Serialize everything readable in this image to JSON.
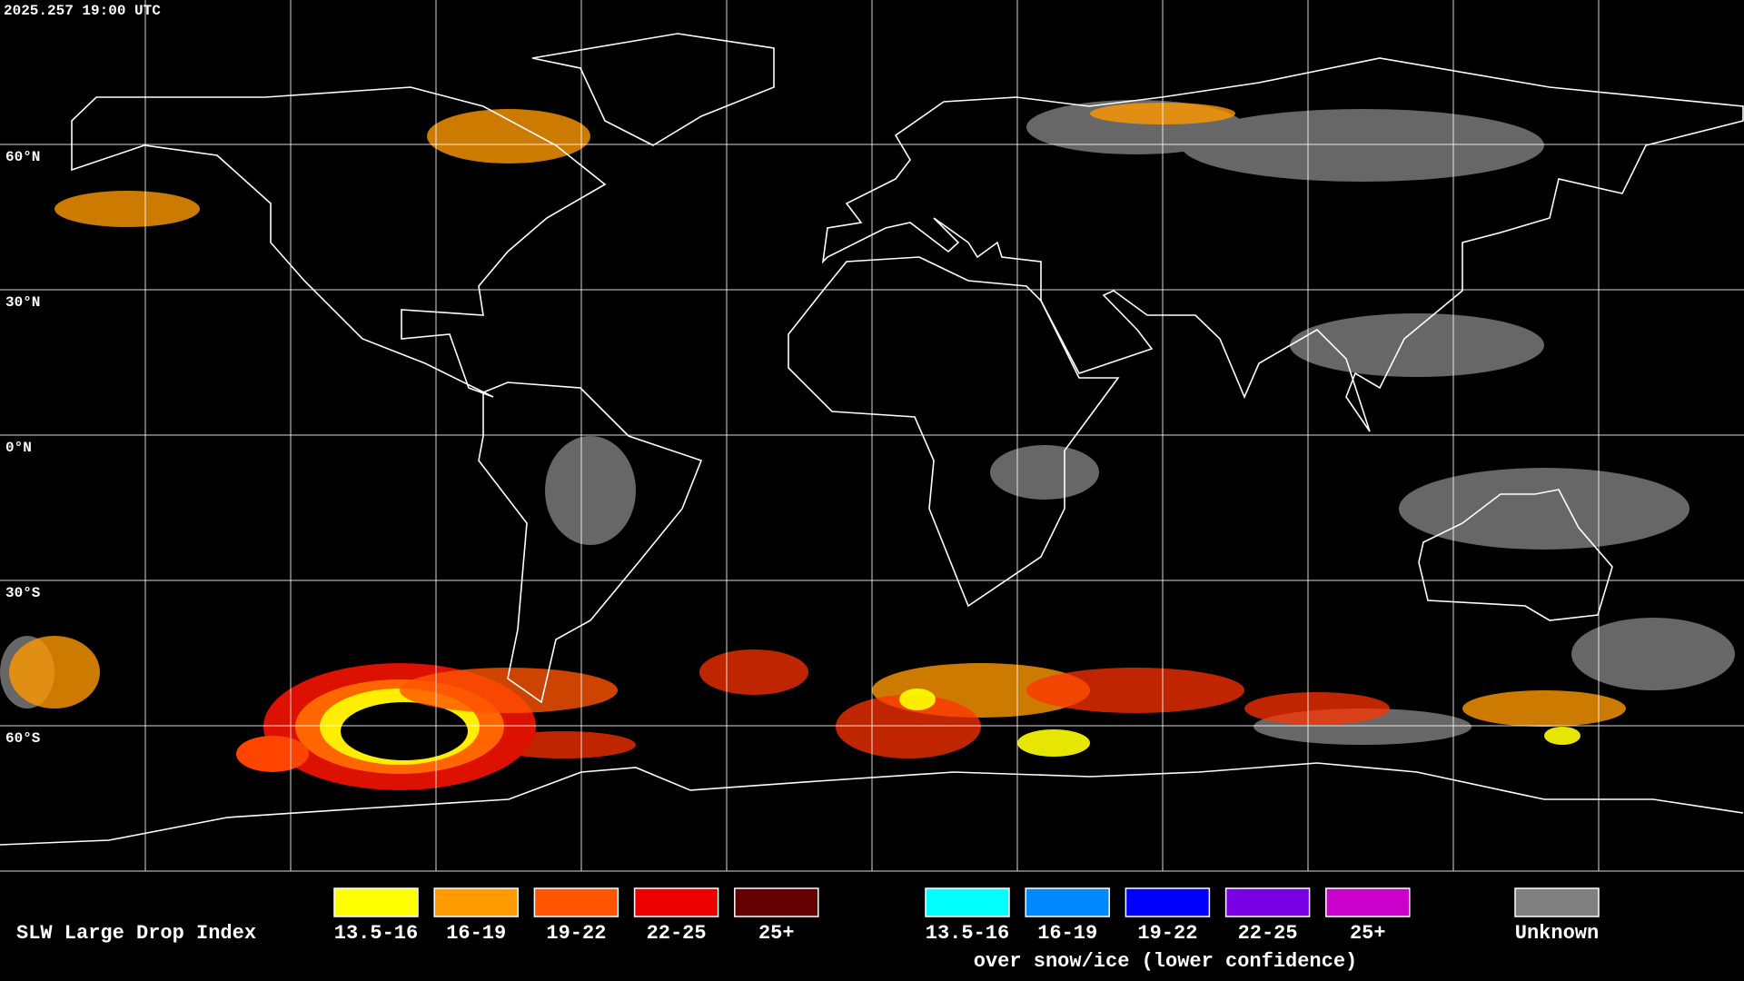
{
  "timestamp": "2025.257 19:00 UTC",
  "latitude_labels": [
    "60°N",
    "30°N",
    "0°N",
    "30°S",
    "60°S"
  ],
  "legend": {
    "title": "SLW Large Drop Index",
    "items": [
      {
        "label": "13.5-16",
        "color": "#ffff00"
      },
      {
        "label": "16-19",
        "color": "#ff9a00"
      },
      {
        "label": "19-22",
        "color": "#ff5500"
      },
      {
        "label": "22-25",
        "color": "#ee0000"
      },
      {
        "label": "25+",
        "color": "#660000"
      }
    ],
    "snow_items": [
      {
        "label": "13.5-16",
        "color": "#00ffff"
      },
      {
        "label": "16-19",
        "color": "#0088ff"
      },
      {
        "label": "19-22",
        "color": "#0000ff"
      },
      {
        "label": "22-25",
        "color": "#7a00e6"
      },
      {
        "label": "25+",
        "color": "#cc00cc"
      }
    ],
    "snow_note": "over snow/ice (lower confidence)",
    "unknown": {
      "label": "Unknown",
      "color": "#808080"
    }
  }
}
